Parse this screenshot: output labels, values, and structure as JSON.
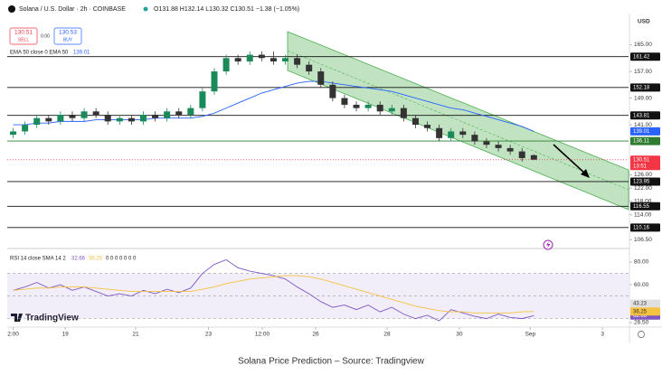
{
  "header": {
    "symbol": "Solana / U.S. Dollar · 2h · COINBASE",
    "ohlc": "O131.88 H132.14 L130.32 C130.51 −1.38 (−1.05%)",
    "sell_price": "130.51",
    "sell_label": "SELL",
    "spread": "0.00",
    "buy_price": "130.53",
    "buy_label": "BUY",
    "ema_legend": "EMA 50 close 0 EMA 50",
    "currency": "USD",
    "countdown": "13:51",
    "logo": "TradingView"
  },
  "caption": "Solana Price Prediction – Source: Tradingview",
  "chart_data": [
    {
      "type": "candlestick",
      "open": [
        138,
        139,
        141,
        143,
        142,
        144,
        143,
        145,
        144,
        142,
        143,
        142,
        144,
        143,
        145,
        144,
        146,
        151,
        157,
        161,
        160,
        162,
        161,
        160,
        161,
        159,
        157,
        153,
        149,
        147,
        146,
        147,
        145,
        146,
        143,
        141,
        140,
        137,
        139,
        138,
        136,
        135,
        134,
        133,
        131.88
      ],
      "high": [
        140,
        142,
        144,
        144,
        145,
        145,
        146,
        146,
        145,
        144,
        144,
        145,
        145,
        146,
        146,
        147,
        152,
        158,
        162,
        162,
        163,
        163,
        163,
        162,
        162,
        160,
        158,
        154,
        150,
        148,
        148,
        148,
        147,
        147,
        144,
        142,
        141,
        140,
        140,
        139,
        137,
        136,
        135,
        134,
        132.14
      ],
      "low": [
        137,
        138,
        140,
        141,
        141,
        142,
        142,
        143,
        141,
        141,
        141,
        141,
        142,
        142,
        143,
        143,
        145,
        150,
        156,
        159,
        159,
        160,
        159,
        159,
        158,
        156,
        152,
        148,
        146,
        145,
        145,
        144,
        144,
        142,
        140,
        139,
        136,
        136,
        137,
        135,
        134,
        133,
        132,
        130,
        130.32
      ],
      "close": [
        139,
        141,
        143,
        142,
        144,
        143,
        145,
        144,
        142,
        143,
        142,
        144,
        143,
        145,
        144,
        146,
        151,
        157,
        161,
        160,
        162,
        161,
        160,
        161,
        159,
        157,
        153,
        149,
        147,
        146,
        147,
        145,
        146,
        143,
        141,
        140,
        137,
        139,
        138,
        136,
        135,
        134,
        133,
        131,
        130.51
      ],
      "up_color": "#1b8a5a",
      "down_color": "#333333",
      "last_color": "#f23645",
      "ema": {
        "values": [
          141,
          141,
          141.5,
          141.5,
          142,
          142,
          142,
          142.5,
          142.5,
          142.5,
          142.5,
          142.5,
          143,
          143,
          143,
          143,
          143.5,
          144.5,
          146,
          147.5,
          149,
          150.5,
          151.5,
          152.5,
          153.5,
          154,
          154,
          153.5,
          153,
          152.5,
          152,
          151.5,
          151,
          150,
          149,
          148,
          147,
          146,
          145.5,
          144.5,
          143.5,
          142.5,
          141.5,
          140.5,
          139.01
        ],
        "color": "#2962ff"
      },
      "levels": [
        161.42,
        152.18,
        143.81,
        136.11,
        123.95,
        116.55,
        110.16
      ],
      "level_colors": [
        "#111111",
        "#111111",
        "#111111",
        "#2e7d32",
        "#111111",
        "#111111",
        "#111111"
      ],
      "ylim": [
        104.7,
        173
      ],
      "yticks": [
        {
          "value": 165,
          "label": "165.00"
        },
        {
          "value": 157,
          "label": "157.00"
        },
        {
          "value": 149,
          "label": "149.00"
        },
        {
          "value": 141,
          "label": "141.00"
        },
        {
          "value": 126,
          "label": "126.00"
        },
        {
          "value": 122,
          "label": "122.00"
        },
        {
          "value": 118,
          "label": "118.00"
        },
        {
          "value": 114,
          "label": "114.00"
        },
        {
          "value": 106.5,
          "label": "106.50"
        }
      ],
      "xlim": [
        -0.5,
        52
      ],
      "xticks": [
        {
          "value": 0,
          "label": "2:00"
        },
        {
          "value": 4.4,
          "label": "19"
        },
        {
          "value": 10.35,
          "label": "21"
        },
        {
          "value": 16.5,
          "label": "23"
        },
        {
          "value": 21.05,
          "label": "12:00"
        },
        {
          "value": 25.56,
          "label": "26"
        },
        {
          "value": 31.6,
          "label": "28"
        },
        {
          "value": 37.7,
          "label": "30"
        },
        {
          "value": 43.7,
          "label": "Sep"
        },
        {
          "value": 49.8,
          "label": "3"
        }
      ]
    },
    {
      "type": "line",
      "legend": "RSI 14 close SMA 14 2",
      "legend_extra": "0 0 0 0 0 0 0",
      "series": [
        {
          "color": "#7e57c2",
          "values": [
            55,
            58,
            62,
            57,
            60,
            55,
            58,
            54,
            50,
            52,
            50,
            55,
            52,
            56,
            53,
            57,
            70,
            78,
            82,
            75,
            72,
            70,
            68,
            65,
            58,
            52,
            45,
            40,
            42,
            38,
            42,
            36,
            40,
            34,
            30,
            33,
            28,
            38,
            35,
            32,
            30,
            34,
            31,
            30,
            32.66
          ]
        },
        {
          "color": "#f5c242",
          "values": [
            55,
            56,
            57,
            57,
            58,
            58,
            58,
            57,
            56,
            55,
            54,
            54,
            54,
            54,
            54,
            54,
            56,
            58,
            61,
            63,
            65,
            66,
            67,
            68,
            68,
            67,
            65,
            62,
            59,
            56,
            53,
            50,
            47,
            44,
            41,
            39,
            37,
            36,
            36,
            35,
            35,
            35,
            35,
            36,
            36.25
          ]
        }
      ],
      "band": [
        30,
        70
      ],
      "middle": 50,
      "levels": [
        43.23
      ],
      "ylim": [
        25.7,
        89.6
      ],
      "yticks": [
        {
          "value": 80,
          "label": "80.00"
        },
        {
          "value": 60,
          "label": "60.00"
        },
        {
          "value": 26.5,
          "label": "26.50"
        }
      ]
    }
  ]
}
